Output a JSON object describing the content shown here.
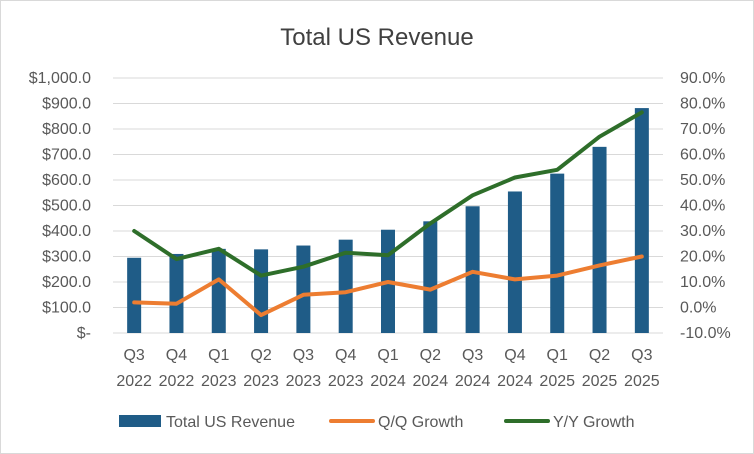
{
  "chart_data": {
    "type": "bar",
    "title": "Total US Revenue",
    "categories": [
      [
        "Q3",
        "2022"
      ],
      [
        "Q4",
        "2022"
      ],
      [
        "Q1",
        "2023"
      ],
      [
        "Q2",
        "2023"
      ],
      [
        "Q3",
        "2023"
      ],
      [
        "Q4",
        "2023"
      ],
      [
        "Q1",
        "2024"
      ],
      [
        "Q2",
        "2024"
      ],
      [
        "Q3",
        "2024"
      ],
      [
        "Q4",
        "2024"
      ],
      [
        "Q1",
        "2025"
      ],
      [
        "Q2",
        "2025"
      ],
      [
        "Q3",
        "2025"
      ]
    ],
    "y_left": {
      "min": 0,
      "max": 1000,
      "step": 100,
      "tick_labels": [
        "$-",
        "$100.0",
        "$200.0",
        "$300.0",
        "$400.0",
        "$500.0",
        "$600.0",
        "$700.0",
        "$800.0",
        "$900.0",
        "$1,000.0"
      ]
    },
    "y_right": {
      "min": -10,
      "max": 90,
      "step": 10,
      "tick_labels": [
        "-10.0%",
        "0.0%",
        "10.0%",
        "20.0%",
        "30.0%",
        "40.0%",
        "50.0%",
        "60.0%",
        "70.0%",
        "80.0%",
        "90.0%"
      ]
    },
    "grid": true,
    "legend_position": "bottom",
    "series": [
      {
        "name": "Total US Revenue",
        "kind": "bar",
        "axis": "left",
        "color": "#1f5c87",
        "values": [
          295,
          310,
          330,
          328,
          343,
          366,
          405,
          438,
          497,
          555,
          625,
          730,
          882
        ]
      },
      {
        "name": "Q/Q Growth",
        "kind": "line",
        "axis": "right",
        "color": "#ed7d31",
        "values": [
          2,
          1.5,
          11,
          -3,
          5,
          6,
          10,
          7,
          14,
          11,
          12.5,
          16.5,
          20
        ]
      },
      {
        "name": "Y/Y Growth",
        "kind": "line",
        "axis": "right",
        "color": "#2e6e2a",
        "values": [
          30,
          19,
          23,
          12.5,
          16,
          21.5,
          20.5,
          33,
          44,
          51,
          54,
          67,
          76.5
        ]
      }
    ]
  }
}
